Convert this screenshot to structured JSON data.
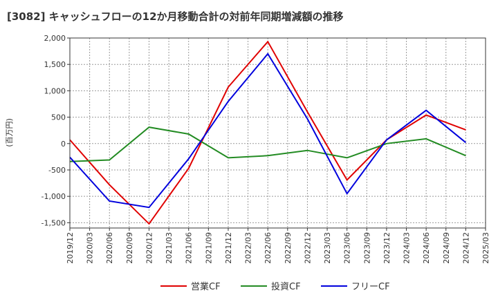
{
  "chart_data": {
    "type": "line",
    "title": "[3082]  キャッシュフローの12か月移動合計の対前年同期増減額の推移",
    "ylabel": "(百万円)",
    "xlabel": "",
    "ylim": [
      -1600,
      2000
    ],
    "yticks": [
      2000,
      1500,
      1000,
      500,
      0,
      -500,
      -1000,
      -1500
    ],
    "ytick_labels": [
      "2,000",
      "1,500",
      "1,000",
      "500",
      "0",
      "-500",
      "-1,000",
      "-1,500"
    ],
    "categories": [
      "2019/12",
      "2020/03",
      "2020/06",
      "2020/09",
      "2020/12",
      "2021/03",
      "2021/06",
      "2021/09",
      "2021/12",
      "2022/03",
      "2022/06",
      "2022/09",
      "2022/12",
      "2023/03",
      "2023/06",
      "2023/09",
      "2023/12",
      "2024/03",
      "2024/06",
      "2024/09",
      "2024/12",
      "2025/03"
    ],
    "grid": true,
    "legend_position": "bottom",
    "series": [
      {
        "name": "営業CF",
        "color": "#e00000",
        "points": [
          [
            "2019/12",
            70
          ],
          [
            "2020/06",
            -780
          ],
          [
            "2020/12",
            -1520
          ],
          [
            "2021/06",
            -470
          ],
          [
            "2021/12",
            1070
          ],
          [
            "2022/06",
            1930
          ],
          [
            "2022/12",
            600
          ],
          [
            "2023/06",
            -690
          ],
          [
            "2023/12",
            70
          ],
          [
            "2024/06",
            540
          ],
          [
            "2024/12",
            260
          ]
        ]
      },
      {
        "name": "投資CF",
        "color": "#228b22",
        "points": [
          [
            "2019/12",
            -340
          ],
          [
            "2020/06",
            -310
          ],
          [
            "2020/12",
            310
          ],
          [
            "2021/06",
            180
          ],
          [
            "2021/12",
            -270
          ],
          [
            "2022/06",
            -230
          ],
          [
            "2022/12",
            -130
          ],
          [
            "2023/06",
            -270
          ],
          [
            "2023/12",
            0
          ],
          [
            "2024/06",
            90
          ],
          [
            "2024/12",
            -230
          ]
        ]
      },
      {
        "name": "フリーCF",
        "color": "#0000dd",
        "points": [
          [
            "2019/12",
            -260
          ],
          [
            "2020/06",
            -1090
          ],
          [
            "2020/12",
            -1210
          ],
          [
            "2021/06",
            -290
          ],
          [
            "2021/12",
            800
          ],
          [
            "2022/06",
            1700
          ],
          [
            "2022/12",
            470
          ],
          [
            "2023/06",
            -950
          ],
          [
            "2023/12",
            70
          ],
          [
            "2024/06",
            630
          ],
          [
            "2024/12",
            20
          ]
        ]
      }
    ]
  }
}
